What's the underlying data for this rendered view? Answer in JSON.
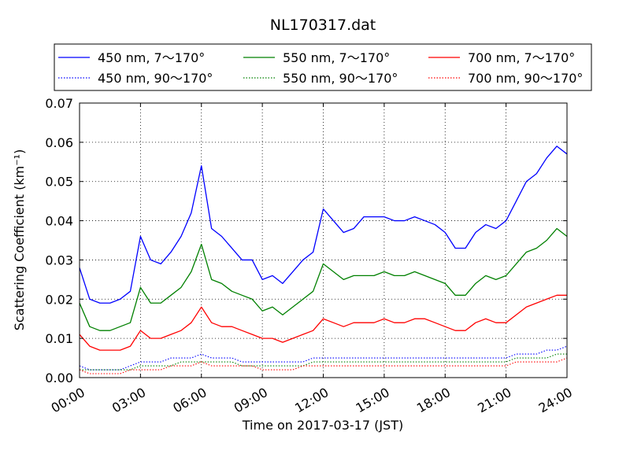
{
  "chart_data": {
    "type": "line",
    "title": "NL170317.dat",
    "xlabel": "Time on 2017-03-17 (JST)",
    "ylabel": "Scattering Coefficient (km⁻¹)",
    "xlim": [
      "2017-03-17 00:00",
      "2017-03-18 00:00"
    ],
    "ylim": [
      0,
      0.07
    ],
    "grid": true,
    "legend_position": "top",
    "x_ticks": [
      "00:00",
      "03:00",
      "06:00",
      "09:00",
      "12:00",
      "15:00",
      "18:00",
      "21:00",
      "24:00"
    ],
    "y_ticks": [
      "0.00",
      "0.01",
      "0.02",
      "0.03",
      "0.04",
      "0.05",
      "0.06",
      "0.07"
    ],
    "x": [
      "00:00",
      "00:30",
      "01:00",
      "01:30",
      "02:00",
      "02:30",
      "03:00",
      "03:30",
      "04:00",
      "04:30",
      "05:00",
      "05:30",
      "06:00",
      "06:30",
      "07:00",
      "07:30",
      "08:00",
      "08:30",
      "09:00",
      "09:30",
      "10:00",
      "10:30",
      "11:00",
      "11:30",
      "12:00",
      "12:30",
      "13:00",
      "13:30",
      "14:00",
      "14:30",
      "15:00",
      "15:30",
      "16:00",
      "16:30",
      "17:00",
      "17:30",
      "18:00",
      "18:30",
      "19:00",
      "19:30",
      "20:00",
      "20:30",
      "21:00",
      "21:30",
      "22:00",
      "22:30",
      "23:00",
      "23:30",
      "24:00"
    ],
    "series": [
      {
        "name": "450 nm, 7～170°",
        "color": "#0000ff",
        "style": "solid",
        "values": [
          0.028,
          0.02,
          0.019,
          0.019,
          0.02,
          0.022,
          0.036,
          0.03,
          0.029,
          0.032,
          0.036,
          0.042,
          0.054,
          0.038,
          0.036,
          0.033,
          0.03,
          0.03,
          0.025,
          0.026,
          0.024,
          0.027,
          0.03,
          0.032,
          0.043,
          0.04,
          0.037,
          0.038,
          0.041,
          0.041,
          0.041,
          0.04,
          0.04,
          0.041,
          0.04,
          0.039,
          0.037,
          0.033,
          0.033,
          0.037,
          0.039,
          0.038,
          0.04,
          0.045,
          0.05,
          0.052,
          0.056,
          0.059,
          0.057
        ]
      },
      {
        "name": "450 nm, 90～170°",
        "color": "#0000ff",
        "style": "dotted",
        "values": [
          0.003,
          0.002,
          0.002,
          0.002,
          0.002,
          0.003,
          0.004,
          0.004,
          0.004,
          0.005,
          0.005,
          0.005,
          0.006,
          0.005,
          0.005,
          0.005,
          0.004,
          0.004,
          0.004,
          0.004,
          0.004,
          0.004,
          0.004,
          0.005,
          0.005,
          0.005,
          0.005,
          0.005,
          0.005,
          0.005,
          0.005,
          0.005,
          0.005,
          0.005,
          0.005,
          0.005,
          0.005,
          0.005,
          0.005,
          0.005,
          0.005,
          0.005,
          0.005,
          0.006,
          0.006,
          0.006,
          0.007,
          0.007,
          0.008
        ]
      },
      {
        "name": "550 nm, 7～170°",
        "color": "#008000",
        "style": "solid",
        "values": [
          0.019,
          0.013,
          0.012,
          0.012,
          0.013,
          0.014,
          0.023,
          0.019,
          0.019,
          0.021,
          0.023,
          0.027,
          0.034,
          0.025,
          0.024,
          0.022,
          0.021,
          0.02,
          0.017,
          0.018,
          0.016,
          0.018,
          0.02,
          0.022,
          0.029,
          0.027,
          0.025,
          0.026,
          0.026,
          0.026,
          0.027,
          0.026,
          0.026,
          0.027,
          0.026,
          0.025,
          0.024,
          0.021,
          0.021,
          0.024,
          0.026,
          0.025,
          0.026,
          0.029,
          0.032,
          0.033,
          0.035,
          0.038,
          0.036
        ]
      },
      {
        "name": "550 nm, 90～170°",
        "color": "#008000",
        "style": "dotted",
        "values": [
          0.002,
          0.002,
          0.002,
          0.002,
          0.002,
          0.002,
          0.003,
          0.003,
          0.003,
          0.003,
          0.004,
          0.004,
          0.004,
          0.004,
          0.004,
          0.004,
          0.003,
          0.003,
          0.003,
          0.003,
          0.003,
          0.003,
          0.003,
          0.004,
          0.004,
          0.004,
          0.004,
          0.004,
          0.004,
          0.004,
          0.004,
          0.004,
          0.004,
          0.004,
          0.004,
          0.004,
          0.004,
          0.004,
          0.004,
          0.004,
          0.004,
          0.004,
          0.004,
          0.005,
          0.005,
          0.005,
          0.005,
          0.006,
          0.006
        ]
      },
      {
        "name": "700 nm, 7～170°",
        "color": "#ff0000",
        "style": "solid",
        "values": [
          0.011,
          0.008,
          0.007,
          0.007,
          0.007,
          0.008,
          0.012,
          0.01,
          0.01,
          0.011,
          0.012,
          0.014,
          0.018,
          0.014,
          0.013,
          0.013,
          0.012,
          0.011,
          0.01,
          0.01,
          0.009,
          0.01,
          0.011,
          0.012,
          0.015,
          0.014,
          0.013,
          0.014,
          0.014,
          0.014,
          0.015,
          0.014,
          0.014,
          0.015,
          0.015,
          0.014,
          0.013,
          0.012,
          0.012,
          0.014,
          0.015,
          0.014,
          0.014,
          0.016,
          0.018,
          0.019,
          0.02,
          0.021,
          0.021
        ]
      },
      {
        "name": "700 nm, 90～170°",
        "color": "#ff0000",
        "style": "dotted",
        "values": [
          0.002,
          0.001,
          0.001,
          0.001,
          0.001,
          0.002,
          0.002,
          0.002,
          0.002,
          0.003,
          0.003,
          0.003,
          0.004,
          0.003,
          0.003,
          0.003,
          0.003,
          0.003,
          0.002,
          0.002,
          0.002,
          0.002,
          0.003,
          0.003,
          0.003,
          0.003,
          0.003,
          0.003,
          0.003,
          0.003,
          0.003,
          0.003,
          0.003,
          0.003,
          0.003,
          0.003,
          0.003,
          0.003,
          0.003,
          0.003,
          0.003,
          0.003,
          0.003,
          0.004,
          0.004,
          0.004,
          0.004,
          0.004,
          0.005
        ]
      }
    ]
  }
}
